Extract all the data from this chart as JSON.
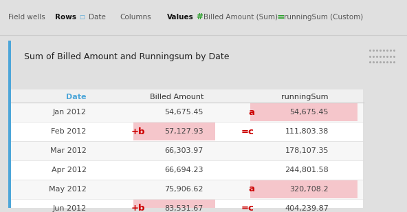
{
  "title": "Sum of Billed Amount and Runningsum by Date",
  "col_headers": [
    "Date",
    "Billed Amount",
    "runningSum"
  ],
  "rows": [
    {
      "date": "Jan 2012",
      "billed": "54,675.45",
      "running": "54,675.45",
      "billed_highlight": false,
      "running_highlight": true,
      "label_left": "",
      "label_mid": "a"
    },
    {
      "date": "Feb 2012",
      "billed": "57,127.93",
      "running": "111,803.38",
      "billed_highlight": true,
      "running_highlight": false,
      "label_left": "+b",
      "label_mid": "=c"
    },
    {
      "date": "Mar 2012",
      "billed": "66,303.97",
      "running": "178,107.35",
      "billed_highlight": false,
      "running_highlight": false,
      "label_left": "",
      "label_mid": ""
    },
    {
      "date": "Apr 2012",
      "billed": "66,694.23",
      "running": "244,801.58",
      "billed_highlight": false,
      "running_highlight": false,
      "label_left": "",
      "label_mid": ""
    },
    {
      "date": "May 2012",
      "billed": "75,906.62",
      "running": "320,708.2",
      "billed_highlight": false,
      "running_highlight": true,
      "label_left": "",
      "label_mid": "a"
    },
    {
      "date": "Jun 2012",
      "billed": "83,531.67",
      "running": "404,239.87",
      "billed_highlight": true,
      "running_highlight": false,
      "label_left": "+b",
      "label_mid": "=c"
    }
  ],
  "highlight_color": "#f5c6cb",
  "top_bar_bg": "#f2f2f2",
  "panel_bg": "#ffffff",
  "outer_bg": "#e0e0e0",
  "border_color": "#4da6d9",
  "date_header_color": "#4da6d9",
  "label_color": "#cc0000",
  "col_header_color": "#333333",
  "row_text_color": "#444444",
  "title_color": "#222222",
  "toolbar_fg": "#555555",
  "rows_color": "#111111",
  "hash_color": "#2ca02c",
  "eq_color": "#2ca02c"
}
